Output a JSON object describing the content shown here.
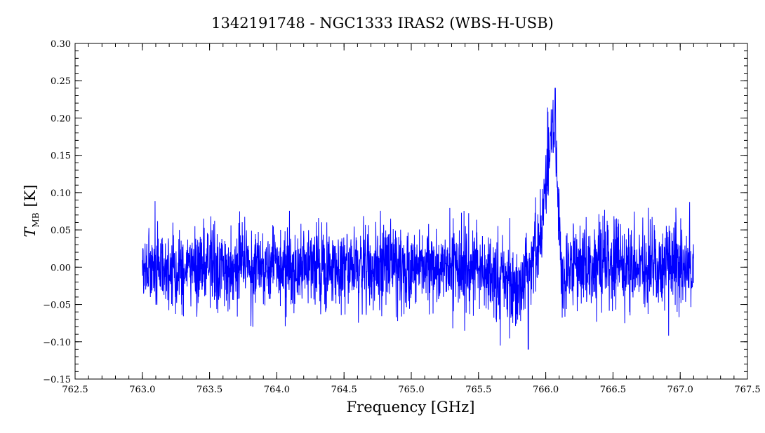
{
  "chart_data": {
    "type": "line",
    "title": "1342191748 - NGC1333 IRAS2 (WBS-H-USB)",
    "xlabel": "Frequency [GHz]",
    "ylabel_main": "T",
    "ylabel_sub": "MB",
    "ylabel_unit": "[K]",
    "xlim": [
      762.5,
      767.5
    ],
    "ylim": [
      -0.15,
      0.3
    ],
    "xticks": [
      "762.5",
      "763.0",
      "763.5",
      "764.0",
      "764.5",
      "765.0",
      "765.5",
      "766.0",
      "766.5",
      "767.0",
      "767.5"
    ],
    "yticks": [
      "-0.15",
      "-0.10",
      "-0.05",
      "0.00",
      "0.05",
      "0.10",
      "0.15",
      "0.20",
      "0.25",
      "0.30"
    ],
    "grid": false,
    "colors": {
      "series": "#0000ff",
      "axes": "#000000"
    },
    "series": [
      {
        "x": [
          763.0,
          763.5,
          764.0,
          764.5,
          765.0,
          765.5,
          765.8,
          765.95,
          766.0,
          766.05,
          766.08,
          766.12,
          766.2,
          766.5,
          767.0,
          767.1
        ],
        "values": [
          0.0,
          0.0,
          0.0,
          0.0,
          0.0,
          0.0,
          -0.03,
          0.03,
          0.1,
          0.2,
          0.15,
          -0.02,
          0.0,
          0.0,
          0.0,
          0.0
        ]
      }
    ],
    "noise_rms": 0.028,
    "peak": {
      "x": 766.07,
      "y": 0.24
    },
    "trough": {
      "x": 765.87,
      "y": -0.11
    }
  }
}
